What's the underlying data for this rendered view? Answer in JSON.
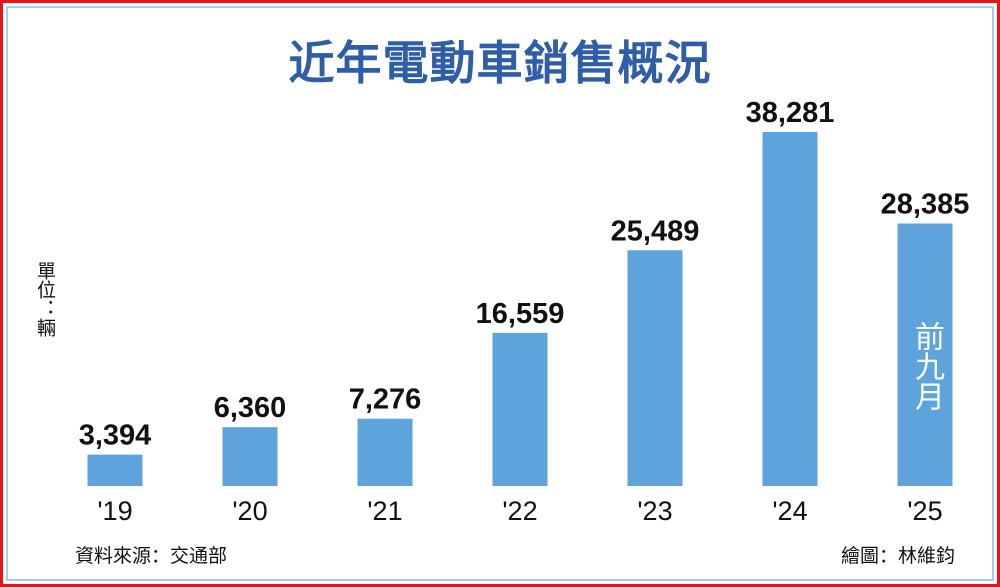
{
  "chart_data": {
    "type": "bar",
    "title": "近年電動車銷售概況",
    "unit_label": "單位：輛",
    "categories": [
      "'19",
      "'20",
      "'21",
      "'22",
      "'23",
      "'24",
      "'25"
    ],
    "values": [
      3394,
      6360,
      7276,
      16559,
      25489,
      38281,
      28385
    ],
    "value_labels": [
      "3,394",
      "6,360",
      "7,276",
      "16,559",
      "25,489",
      "38,281",
      "28,385"
    ],
    "annotation": "前九月",
    "grid": false,
    "legend": "none",
    "bar_color": "#5fa3dd"
  },
  "footer": {
    "source": "資料來源：交通部",
    "credit": "繪圖：林維鈞"
  },
  "colors": {
    "title": "#2f5ea8",
    "border": "#e8141a"
  }
}
